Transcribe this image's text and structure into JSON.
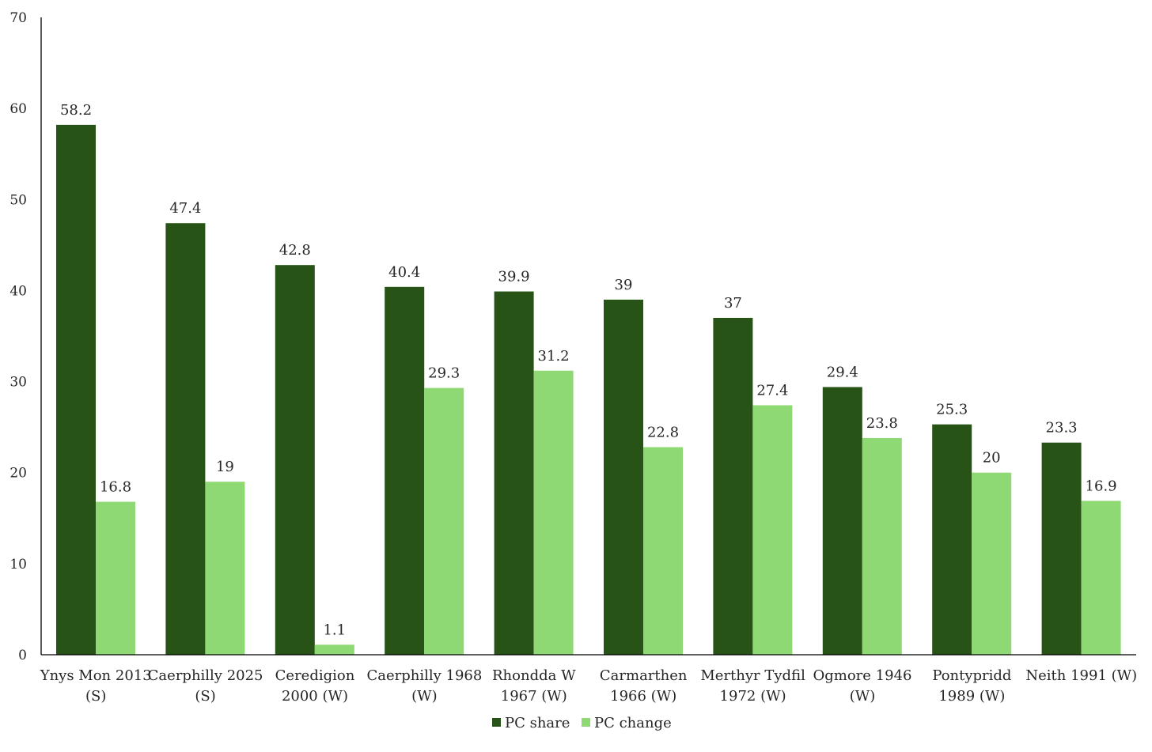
{
  "chart_data": {
    "type": "bar",
    "categories": [
      [
        "Ynys Mon 2013",
        "(S)"
      ],
      [
        "Caerphilly 2025",
        "(S)"
      ],
      [
        "Ceredigion",
        "2000 (W)"
      ],
      [
        "Caerphilly 1968",
        "(W)"
      ],
      [
        "Rhondda W",
        "1967 (W)"
      ],
      [
        "Carmarthen",
        "1966 (W)"
      ],
      [
        "Merthyr Tydfil",
        "1972 (W)"
      ],
      [
        "Ogmore 1946",
        "(W)"
      ],
      [
        "Pontypridd",
        "1989 (W)"
      ],
      [
        "Neith 1991 (W)",
        ""
      ]
    ],
    "series": [
      {
        "name": "PC share",
        "color": "#275317",
        "values": [
          58.2,
          47.4,
          42.8,
          40.4,
          39.9,
          39,
          37,
          29.4,
          25.3,
          23.3
        ],
        "labels": [
          "58.2",
          "47.4",
          "42.8",
          "40.4",
          "39.9",
          "39",
          "37",
          "29.4",
          "25.3",
          "23.3"
        ]
      },
      {
        "name": "PC change",
        "color": "#8ED973",
        "values": [
          16.8,
          19,
          1.1,
          29.3,
          31.2,
          22.8,
          27.4,
          23.8,
          20,
          16.9
        ],
        "labels": [
          "16.8",
          "19",
          "1.1",
          "29.3",
          "31.2",
          "22.8",
          "27.4",
          "23.8",
          "20",
          "16.9"
        ]
      }
    ],
    "yticks": [
      "0",
      "10",
      "20",
      "30",
      "40",
      "50",
      "60",
      "70"
    ],
    "ylim": [
      0,
      70
    ],
    "grid": false,
    "legend": "bottom-center"
  }
}
